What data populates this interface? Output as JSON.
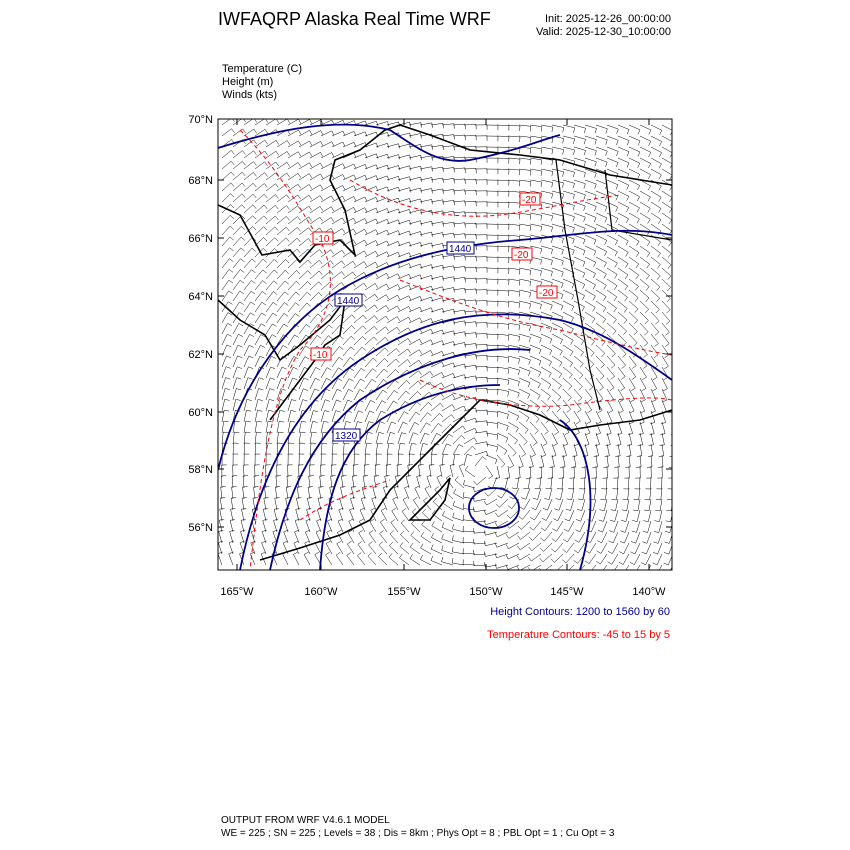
{
  "header": {
    "title": "IWFAQRP Alaska Real Time WRF",
    "init": "Init: 2025-12-26_00:00:00",
    "valid": "Valid: 2025-12-30_10:00:00"
  },
  "fields": [
    {
      "label": "Temperature   (C)"
    },
    {
      "label": "Height   (m)"
    },
    {
      "label": "Winds   (kts)"
    }
  ],
  "map": {
    "lat_ticks": [
      "70°N",
      "68°N",
      "66°N",
      "64°N",
      "62°N",
      "60°N",
      "58°N",
      "56°N"
    ],
    "lon_ticks": [
      "165°W",
      "160°W",
      "155°W",
      "150°W",
      "145°W",
      "140°W"
    ],
    "height_labels": [
      "1440",
      "1440",
      "1320"
    ],
    "temp_labels": [
      "-20",
      "-10",
      "-20",
      "-20",
      "-10"
    ],
    "colors": {
      "height": "#00008b",
      "temperature": "#ff0000",
      "coast": "#000000",
      "barbs": "#000000"
    }
  },
  "legend": {
    "height": "Height Contours: 1200 to 1560 by 60",
    "temperature": "Temperature Contours: -45 to 15 by 5"
  },
  "footer": {
    "line1": "OUTPUT FROM WRF V4.6.1 MODEL",
    "line2": "WE = 225 ; SN = 225 ; Levels = 38 ; Dis = 8km ; Phys Opt = 8 ; PBL Opt = 1 ; Cu Opt = 3"
  }
}
